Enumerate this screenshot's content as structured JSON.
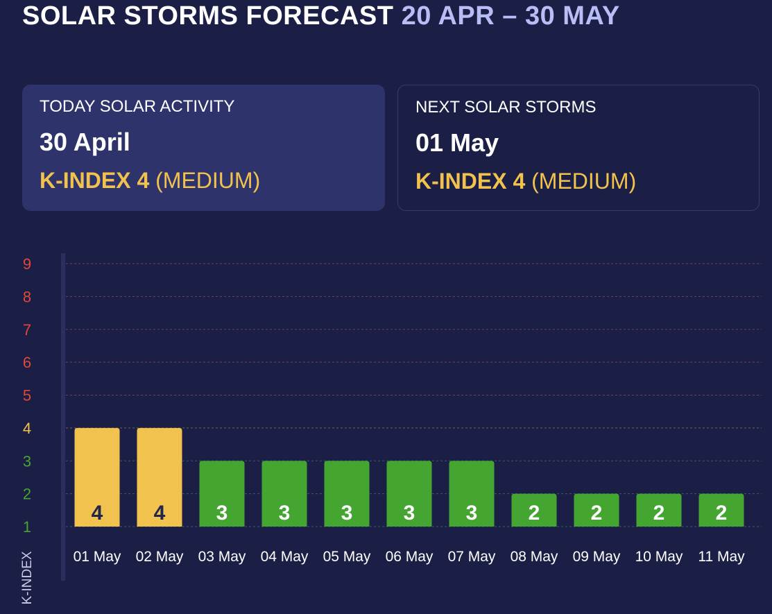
{
  "header": {
    "title": "SOLAR STORMS FORECAST",
    "range": "20 APR – 30 MAY"
  },
  "today_card": {
    "label": "TODAY SOLAR ACTIVITY",
    "date": "30 April",
    "kindex": "K-INDEX 4",
    "level": "(MEDIUM)"
  },
  "next_card": {
    "label": "NEXT SOLAR STORMS",
    "date": "01 May",
    "kindex": "K-INDEX 4",
    "level": "(MEDIUM)"
  },
  "colors": {
    "background": "#1b1f45",
    "card_active": "#2e346b",
    "medium": "#f2c24f",
    "low": "#45a531",
    "high": "#e0483b"
  },
  "chart_data": {
    "type": "bar",
    "ylabel": "K-INDEX",
    "xlabel": "",
    "title": "",
    "ylim": [
      1,
      9
    ],
    "yticks": [
      "1",
      "2",
      "3",
      "4",
      "5",
      "6",
      "7",
      "8",
      "9"
    ],
    "categories": [
      "01 May",
      "02 May",
      "03 May",
      "04 May",
      "05 May",
      "06 May",
      "07 May",
      "08 May",
      "09 May",
      "10 May",
      "11 May"
    ],
    "values": [
      4,
      4,
      3,
      3,
      3,
      3,
      3,
      2,
      2,
      2,
      2
    ],
    "grid": true,
    "legend": "none"
  }
}
